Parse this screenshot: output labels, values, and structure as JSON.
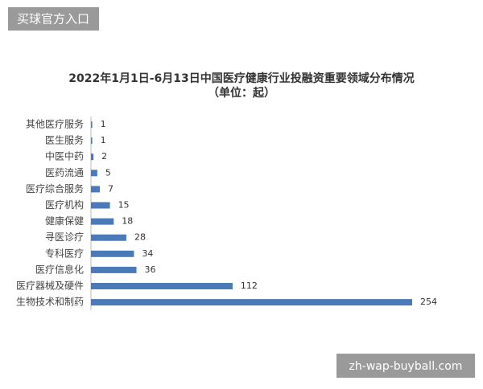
{
  "badge": "买球官方入口",
  "watermark": "zh-wap-buyball.com",
  "chart_data": {
    "type": "hbar",
    "title": "2022年1月1日-6月13日中国医疗健康行业投融资重要领域分布情况",
    "subtitle": "（单位：起）",
    "categories": [
      "其他医疗服务",
      "医生服务",
      "中医中药",
      "医药流通",
      "医疗综合服务",
      "医疗机构",
      "健康保健",
      "寻医诊疗",
      "专科医疗",
      "医疗信息化",
      "医疗器械及硬件",
      "生物技术和制药"
    ],
    "values": [
      1,
      1,
      2,
      5,
      7,
      15,
      18,
      28,
      34,
      36,
      112,
      254
    ],
    "color": "#4a7ab8"
  }
}
